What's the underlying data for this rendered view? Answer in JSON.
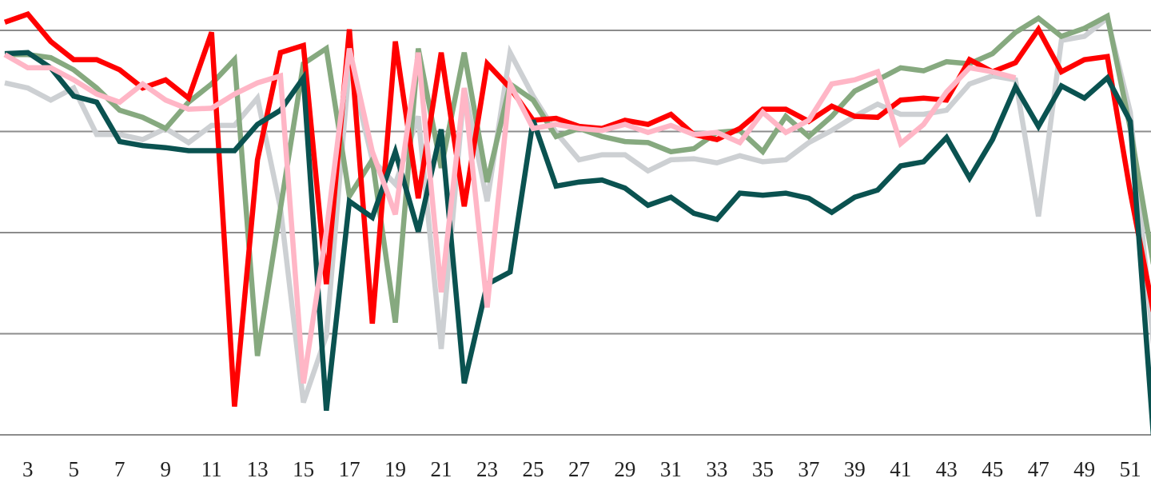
{
  "chart_data": {
    "type": "line",
    "x": [
      2,
      3,
      4,
      5,
      6,
      7,
      8,
      9,
      10,
      11,
      12,
      13,
      14,
      15,
      16,
      17,
      18,
      19,
      20,
      21,
      22,
      23,
      24,
      25,
      26,
      27,
      28,
      29,
      30,
      31,
      32,
      33,
      34,
      35,
      36,
      37,
      38,
      39,
      40,
      41,
      42,
      43,
      44,
      45,
      46,
      47,
      48,
      49,
      50,
      51,
      52
    ],
    "xlim": [
      1.79,
      51.9
    ],
    "xticks": [
      3,
      5,
      7,
      9,
      11,
      13,
      15,
      17,
      19,
      21,
      23,
      25,
      27,
      29,
      31,
      33,
      35,
      37,
      39,
      41,
      43,
      45,
      47,
      49,
      51
    ],
    "ylim": [
      0,
      430
    ],
    "yticks": [
      0,
      100,
      200,
      300,
      400
    ],
    "grid": true,
    "series": [
      {
        "color": "#cdd0d3",
        "values": [
          348,
          343,
          331,
          343,
          297,
          297,
          292,
          303,
          289,
          306,
          306,
          333,
          224,
          32,
          98,
          367,
          272,
          248,
          315,
          85,
          343,
          231,
          378,
          335,
          299,
          272,
          277,
          277,
          261,
          272,
          273,
          269,
          276,
          270,
          272,
          289,
          301,
          315,
          327,
          317,
          317,
          321,
          347,
          355,
          351,
          216,
          390,
          394,
          412,
          319,
          90
        ]
      },
      {
        "color": "#86a97f",
        "values": [
          376,
          376,
          373,
          361,
          343,
          321,
          314,
          303,
          329,
          347,
          371,
          78,
          224,
          367,
          382,
          236,
          272,
          111,
          382,
          264,
          378,
          250,
          347,
          331,
          295,
          303,
          295,
          290,
          289,
          280,
          283,
          299,
          301,
          280,
          315,
          295,
          315,
          340,
          351,
          363,
          360,
          369,
          367,
          377,
          398,
          412,
          394,
          402,
          414,
          303,
          169
        ]
      },
      {
        "color": "#ff0000",
        "values": [
          408,
          416,
          389,
          371,
          371,
          361,
          343,
          351,
          333,
          398,
          28,
          272,
          378,
          385,
          149,
          401,
          110,
          389,
          234,
          378,
          226,
          367,
          343,
          311,
          313,
          305,
          303,
          311,
          307,
          317,
          297,
          292,
          303,
          322,
          322,
          310,
          325,
          315,
          314,
          331,
          333,
          331,
          371,
          359,
          368,
          401,
          359,
          371,
          374,
          240,
          122
        ]
      },
      {
        "color": "#0a5250",
        "values": [
          377,
          378,
          363,
          335,
          329,
          290,
          286,
          284,
          281,
          281,
          281,
          307,
          321,
          353,
          24,
          231,
          215,
          280,
          201,
          302,
          51,
          149,
          161,
          311,
          246,
          250,
          252,
          244,
          227,
          235,
          219,
          213,
          239,
          237,
          239,
          234,
          220,
          235,
          242,
          266,
          270,
          294,
          254,
          292,
          344,
          305,
          345,
          333,
          353,
          310,
          0
        ]
      },
      {
        "color": "#ffb6c6",
        "values": [
          376,
          363,
          363,
          351,
          337,
          329,
          347,
          331,
          322,
          323,
          337,
          348,
          355,
          51,
          201,
          382,
          280,
          218,
          378,
          141,
          343,
          126,
          347,
          303,
          307,
          303,
          301,
          307,
          299,
          306,
          297,
          299,
          289,
          319,
          299,
          311,
          347,
          351,
          359,
          288,
          307,
          339,
          363,
          359,
          353,
          null,
          null,
          null,
          null,
          null,
          null
        ]
      }
    ]
  }
}
